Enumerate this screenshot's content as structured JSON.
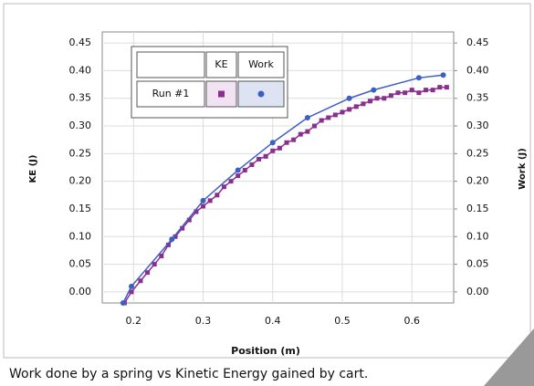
{
  "chart_data": {
    "type": "line",
    "caption": "Work done by a spring vs Kinetic Energy gained by cart.",
    "xlabel": "Position (m)",
    "ylabel": "KE (J)",
    "y2label": "Work (J)",
    "run_label": "Run #1",
    "xlim": [
      0.155,
      0.66
    ],
    "xticks": [
      0.2,
      0.3,
      0.4,
      0.5,
      0.6
    ],
    "ylim": [
      -0.02,
      0.47
    ],
    "yticks": [
      {
        "value": 0,
        "label": "0.00"
      },
      {
        "value": 0.05,
        "label": "0.05"
      },
      {
        "value": 0.1,
        "label": "0.10"
      },
      {
        "value": 0.15,
        "label": "0.15"
      },
      {
        "value": 0.2,
        "label": "0.20"
      },
      {
        "value": 0.25,
        "label": "0.25"
      },
      {
        "value": 0.3,
        "label": "0.30"
      },
      {
        "value": 0.35,
        "label": "0.35"
      },
      {
        "value": 0.4,
        "label": "0.40"
      },
      {
        "value": 0.45,
        "label": "0.45"
      }
    ],
    "y2lim": [
      -0.02,
      0.47
    ],
    "y2ticks": [
      {
        "value": 0,
        "label": "0.00"
      },
      {
        "value": 0.05,
        "label": "0.05"
      },
      {
        "value": 0.1,
        "label": "0.10"
      },
      {
        "value": 0.15,
        "label": "0.15"
      },
      {
        "value": 0.2,
        "label": "0.20"
      },
      {
        "value": 0.25,
        "label": "0.25"
      },
      {
        "value": 0.3,
        "label": "0.30"
      },
      {
        "value": 0.35,
        "label": "0.35"
      },
      {
        "value": 0.4,
        "label": "0.40"
      },
      {
        "value": 0.45,
        "label": "0.45"
      }
    ],
    "grid": true,
    "series": [
      {
        "name": "KE",
        "color": "#8b2f8f",
        "marker": "square",
        "x": [
          0.187,
          0.197,
          0.21,
          0.22,
          0.23,
          0.24,
          0.25,
          0.26,
          0.27,
          0.28,
          0.29,
          0.3,
          0.31,
          0.32,
          0.33,
          0.34,
          0.35,
          0.36,
          0.37,
          0.38,
          0.39,
          0.4,
          0.41,
          0.42,
          0.43,
          0.44,
          0.45,
          0.46,
          0.47,
          0.48,
          0.49,
          0.5,
          0.51,
          0.52,
          0.53,
          0.54,
          0.55,
          0.56,
          0.57,
          0.58,
          0.59,
          0.6,
          0.61,
          0.62,
          0.63,
          0.64,
          0.65
        ],
        "values": [
          -0.02,
          0.0,
          0.02,
          0.035,
          0.05,
          0.065,
          0.085,
          0.1,
          0.115,
          0.13,
          0.145,
          0.155,
          0.165,
          0.175,
          0.19,
          0.2,
          0.21,
          0.22,
          0.23,
          0.24,
          0.245,
          0.255,
          0.26,
          0.27,
          0.275,
          0.285,
          0.29,
          0.3,
          0.31,
          0.315,
          0.32,
          0.325,
          0.33,
          0.335,
          0.34,
          0.345,
          0.35,
          0.35,
          0.355,
          0.36,
          0.36,
          0.365,
          0.36,
          0.365,
          0.365,
          0.37,
          0.37
        ]
      },
      {
        "name": "Work",
        "color": "#3d5fc4",
        "marker": "circle",
        "axis": "y2",
        "x": [
          0.185,
          0.197,
          0.255,
          0.3,
          0.35,
          0.4,
          0.45,
          0.51,
          0.545,
          0.61,
          0.645
        ],
        "values": [
          -0.02,
          0.01,
          0.095,
          0.165,
          0.22,
          0.27,
          0.315,
          0.35,
          0.365,
          0.387,
          0.392
        ]
      }
    ]
  }
}
